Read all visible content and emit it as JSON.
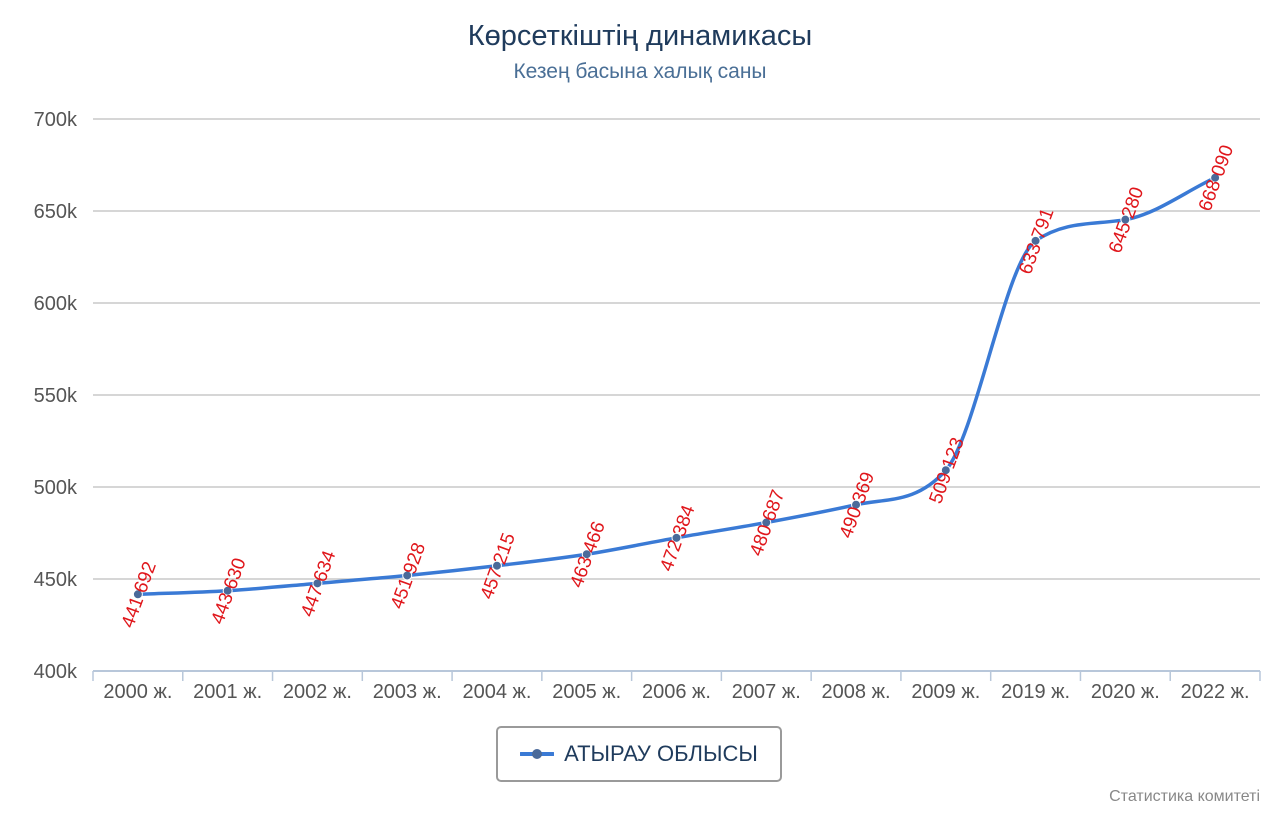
{
  "chart_data": {
    "type": "line",
    "title": "Көрсеткіштің динамикасы",
    "subtitle": "Кезең басына халық саны",
    "xlabel": "",
    "ylabel": "",
    "categories": [
      "2000 ж.",
      "2001 ж.",
      "2002 ж.",
      "2003 ж.",
      "2004 ж.",
      "2005 ж.",
      "2006 ж.",
      "2007 ж.",
      "2008 ж.",
      "2009 ж.",
      "2019 ж.",
      "2020 ж.",
      "2022 ж."
    ],
    "series": [
      {
        "name": "АТЫРАУ ОБЛЫСЫ",
        "values": [
          441692,
          443630,
          447634,
          451928,
          457215,
          463466,
          472384,
          480687,
          490369,
          509123,
          633791,
          645280,
          668090
        ],
        "labels": [
          "441 692",
          "443 630",
          "447 634",
          "451 928",
          "457 215",
          "463 466",
          "472 384",
          "480 687",
          "490 369",
          "509 123",
          "633 791",
          "645 280",
          "668 090"
        ],
        "color": "#3a7ad5"
      }
    ],
    "ylim": [
      400000,
      700000
    ],
    "yticks": [
      400000,
      450000,
      500000,
      550000,
      600000,
      650000,
      700000
    ],
    "ytick_labels": [
      "400k",
      "450k",
      "500k",
      "550k",
      "600k",
      "650k",
      "700k"
    ],
    "grid": true,
    "legend": "bottom-center",
    "colors": {
      "line": "#3a7ad5",
      "marker": "#4a6a9a",
      "data_label": "#e0161b",
      "grid": "#c8c8c8"
    }
  },
  "credits": "Статистика комитеті"
}
